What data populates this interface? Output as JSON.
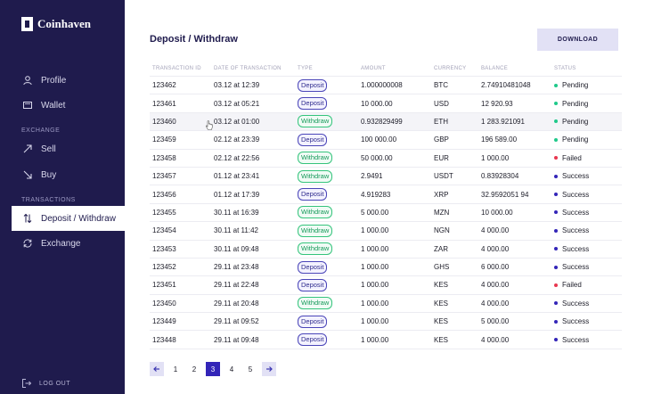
{
  "brand": {
    "name": "Coinhaven"
  },
  "sidebar": {
    "items": [
      {
        "label": "Profile",
        "icon": "user-icon"
      },
      {
        "label": "Wallet",
        "icon": "wallet-icon"
      },
      {
        "label": "Sell",
        "icon": "arrow-up-right-icon"
      },
      {
        "label": "Buy",
        "icon": "arrow-down-right-icon"
      },
      {
        "label": "Deposit / Withdraw",
        "icon": "arrows-up-down-icon",
        "active": true
      },
      {
        "label": "Exchange",
        "icon": "refresh-icon"
      }
    ],
    "section_exchange": "EXCHANGE",
    "section_transactions": "TRANSACTIONS",
    "logout": "LOG OUT"
  },
  "page": {
    "title": "Deposit / Withdraw",
    "download_label": "DOWNLOAD"
  },
  "table": {
    "headers": [
      "TRANSACTION ID",
      "DATE OF TRANSACTION",
      "TYPE",
      "AMOUNT",
      "CURRENCY",
      "BALANCE",
      "STATUS"
    ],
    "rows": [
      {
        "id": "123462",
        "date": "03.12 at 12:39",
        "type": "Deposit",
        "amount": "1.000000008",
        "currency": "BTC",
        "balance": "2.74910481048",
        "status": "Pending"
      },
      {
        "id": "123461",
        "date": "03.12 at 05:21",
        "type": "Deposit",
        "amount": "10 000.00",
        "currency": "USD",
        "balance": "12 920.93",
        "status": "Pending"
      },
      {
        "id": "123460",
        "date": "03.12 at 01:00",
        "type": "Withdraw",
        "amount": "0.932829499",
        "currency": "ETH",
        "balance": "1 283.921091",
        "status": "Pending"
      },
      {
        "id": "123459",
        "date": "02.12 at 23:39",
        "type": "Deposit",
        "amount": "100 000.00",
        "currency": "GBP",
        "balance": "196 589.00",
        "status": "Pending"
      },
      {
        "id": "123458",
        "date": "02.12 at 22:56",
        "type": "Withdraw",
        "amount": "50 000.00",
        "currency": "EUR",
        "balance": "1 000.00",
        "status": "Failed"
      },
      {
        "id": "123457",
        "date": "01.12 at 23:41",
        "type": "Withdraw",
        "amount": "2.9491",
        "currency": "USDT",
        "balance": "0.83928304",
        "status": "Success"
      },
      {
        "id": "123456",
        "date": "01.12 at 17:39",
        "type": "Deposit",
        "amount": "4.919283",
        "currency": "XRP",
        "balance": "32.9592051 94",
        "status": "Success"
      },
      {
        "id": "123455",
        "date": "30.11 at 16:39",
        "type": "Withdraw",
        "amount": "5 000.00",
        "currency": "MZN",
        "balance": "10 000.00",
        "status": "Success"
      },
      {
        "id": "123454",
        "date": "30.11 at 11:42",
        "type": "Withdraw",
        "amount": "1 000.00",
        "currency": "NGN",
        "balance": "4 000.00",
        "status": "Success"
      },
      {
        "id": "123453",
        "date": "30.11 at 09:48",
        "type": "Withdraw",
        "amount": "1 000.00",
        "currency": "ZAR",
        "balance": "4 000.00",
        "status": "Success"
      },
      {
        "id": "123452",
        "date": "29.11 at 23:48",
        "type": "Deposit",
        "amount": "1 000.00",
        "currency": "GHS",
        "balance": "6 000.00",
        "status": "Success"
      },
      {
        "id": "123451",
        "date": "29.11 at 22:48",
        "type": "Deposit",
        "amount": "1 000.00",
        "currency": "KES",
        "balance": "4 000.00",
        "status": "Failed"
      },
      {
        "id": "123450",
        "date": "29.11 at 20:48",
        "type": "Withdraw",
        "amount": "1 000.00",
        "currency": "KES",
        "balance": "4 000.00",
        "status": "Success"
      },
      {
        "id": "123449",
        "date": "29.11 at 09:52",
        "type": "Deposit",
        "amount": "1 000.00",
        "currency": "KES",
        "balance": "5 000.00",
        "status": "Success"
      },
      {
        "id": "123448",
        "date": "29.11 at 09:48",
        "type": "Deposit",
        "amount": "1 000.00",
        "currency": "KES",
        "balance": "4 000.00",
        "status": "Success"
      }
    ]
  },
  "status_colors": {
    "Pending": "#1fc98a",
    "Failed": "#e8364f",
    "Success": "#3325b8"
  },
  "pagination": {
    "pages": [
      "1",
      "2",
      "3",
      "4",
      "5"
    ],
    "current": "3",
    "prev_icon": "arrow-left-icon",
    "next_icon": "arrow-right-icon"
  }
}
